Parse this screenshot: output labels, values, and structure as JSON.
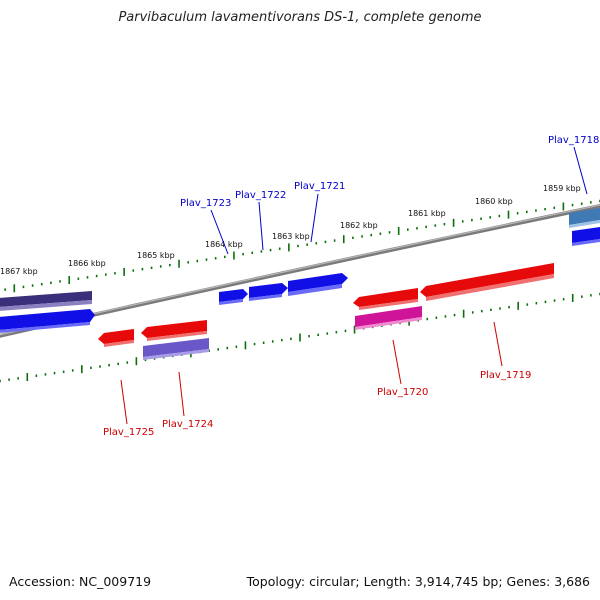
{
  "title": "Parvibaculum lavamentivorans DS-1, complete genome",
  "footer": {
    "accession": "Accession: NC_009719",
    "topology": "Topology: circular; Length: 3,914,745 bp; Genes: 3,686"
  },
  "colors": {
    "backbone": "#7a7a7a",
    "tick": "#0d6e0d",
    "label_forward": "#0000cc",
    "label_reverse": "#cc0000",
    "leader_forward": "#0000cc",
    "leader_reverse": "#cc0000"
  },
  "scale_labels": [
    "1867 kbp",
    "1866 kbp",
    "1865 kbp",
    "1864 kbp",
    "1863 kbp",
    "1862 kbp",
    "1861 kbp",
    "1860 kbp",
    "1859 kbp"
  ],
  "gene_labels": {
    "forward": [
      "Plav_1723",
      "Plav_1722",
      "Plav_1721",
      "Plav_1718"
    ],
    "reverse": [
      "Plav_1725",
      "Plav_1724",
      "Plav_1720",
      "Plav_1719"
    ]
  },
  "feature_colors": {
    "forward_blue": "#1010e6",
    "forward_navy": "#3a2f7a",
    "forward_steel": "#3f7ab4",
    "reverse_red": "#e60a0a",
    "reverse_magenta": "#d0149a",
    "reverse_purple": "#6a58c8"
  }
}
